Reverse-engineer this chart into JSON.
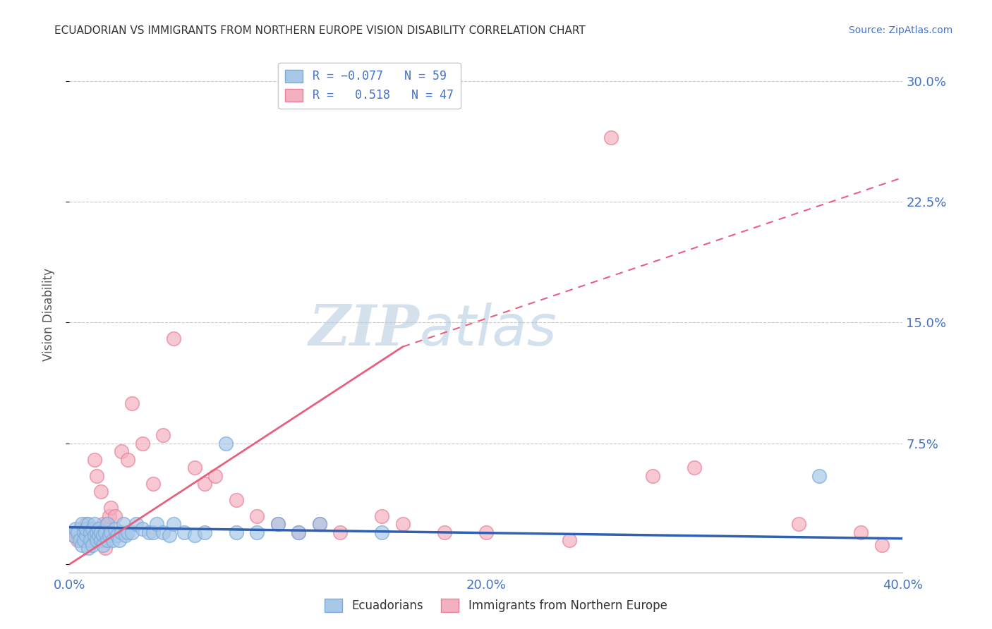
{
  "title": "ECUADORIAN VS IMMIGRANTS FROM NORTHERN EUROPE VISION DISABILITY CORRELATION CHART",
  "source": "Source: ZipAtlas.com",
  "ylabel": "Vision Disability",
  "xlim": [
    0.0,
    0.4
  ],
  "ylim": [
    -0.005,
    0.315
  ],
  "yticks": [
    0.0,
    0.075,
    0.15,
    0.225,
    0.3
  ],
  "ytick_labels": [
    "",
    "7.5%",
    "15.0%",
    "22.5%",
    "30.0%"
  ],
  "xticks": [
    0.0,
    0.1,
    0.2,
    0.3,
    0.4
  ],
  "xtick_labels": [
    "0.0%",
    "",
    "20.0%",
    "",
    "40.0%"
  ],
  "series1_color": "#a8c8e8",
  "series1_edge": "#7aabda",
  "series2_color": "#f4b0c0",
  "series2_edge": "#e8809a",
  "title_color": "#333333",
  "tick_label_color": "#4472c4",
  "background_color": "#ffffff",
  "grid_color": "#c8c8c8",
  "watermark_zip_color": "#c8d8e8",
  "watermark_atlas_color": "#c0d4e8",
  "line1_color": "#3060b0",
  "line2_color": "#e86080",
  "ecuadorians_x": [
    0.002,
    0.003,
    0.004,
    0.005,
    0.006,
    0.006,
    0.007,
    0.007,
    0.008,
    0.008,
    0.009,
    0.009,
    0.01,
    0.01,
    0.011,
    0.011,
    0.012,
    0.012,
    0.013,
    0.013,
    0.014,
    0.014,
    0.015,
    0.015,
    0.016,
    0.016,
    0.017,
    0.018,
    0.018,
    0.019,
    0.02,
    0.021,
    0.022,
    0.023,
    0.024,
    0.025,
    0.026,
    0.027,
    0.028,
    0.03,
    0.032,
    0.035,
    0.038,
    0.04,
    0.042,
    0.045,
    0.048,
    0.05,
    0.055,
    0.06,
    0.065,
    0.075,
    0.08,
    0.09,
    0.1,
    0.11,
    0.12,
    0.15,
    0.36
  ],
  "ecuadorians_y": [
    0.018,
    0.022,
    0.02,
    0.015,
    0.025,
    0.012,
    0.02,
    0.015,
    0.018,
    0.022,
    0.01,
    0.025,
    0.02,
    0.015,
    0.022,
    0.012,
    0.018,
    0.025,
    0.02,
    0.015,
    0.018,
    0.022,
    0.015,
    0.02,
    0.018,
    0.012,
    0.02,
    0.015,
    0.025,
    0.018,
    0.02,
    0.015,
    0.022,
    0.018,
    0.015,
    0.02,
    0.025,
    0.018,
    0.02,
    0.02,
    0.025,
    0.022,
    0.02,
    0.02,
    0.025,
    0.02,
    0.018,
    0.025,
    0.02,
    0.018,
    0.02,
    0.075,
    0.02,
    0.02,
    0.025,
    0.02,
    0.025,
    0.02,
    0.055
  ],
  "northern_europe_x": [
    0.002,
    0.003,
    0.004,
    0.005,
    0.006,
    0.007,
    0.008,
    0.009,
    0.01,
    0.011,
    0.012,
    0.013,
    0.014,
    0.015,
    0.016,
    0.017,
    0.018,
    0.019,
    0.02,
    0.022,
    0.025,
    0.028,
    0.03,
    0.035,
    0.04,
    0.045,
    0.05,
    0.06,
    0.065,
    0.07,
    0.08,
    0.09,
    0.1,
    0.11,
    0.12,
    0.13,
    0.15,
    0.16,
    0.18,
    0.2,
    0.24,
    0.26,
    0.28,
    0.3,
    0.35,
    0.38,
    0.39
  ],
  "northern_europe_y": [
    0.018,
    0.02,
    0.015,
    0.022,
    0.018,
    0.02,
    0.025,
    0.015,
    0.02,
    0.018,
    0.065,
    0.055,
    0.02,
    0.045,
    0.025,
    0.01,
    0.025,
    0.03,
    0.035,
    0.03,
    0.07,
    0.065,
    0.1,
    0.075,
    0.05,
    0.08,
    0.14,
    0.06,
    0.05,
    0.055,
    0.04,
    0.03,
    0.025,
    0.02,
    0.025,
    0.02,
    0.03,
    0.025,
    0.02,
    0.02,
    0.015,
    0.265,
    0.055,
    0.06,
    0.025,
    0.02,
    0.012
  ],
  "trend1_x0": 0.0,
  "trend1_x1": 0.4,
  "trend1_y0": 0.023,
  "trend1_y1": 0.016,
  "trend2_solid_x0": 0.0,
  "trend2_solid_x1": 0.16,
  "trend2_y0": 0.0,
  "trend2_y1": 0.135,
  "trend2_dashed_x0": 0.16,
  "trend2_dashed_x1": 0.4,
  "trend2_dashed_y0": 0.135,
  "trend2_dashed_y1": 0.24
}
